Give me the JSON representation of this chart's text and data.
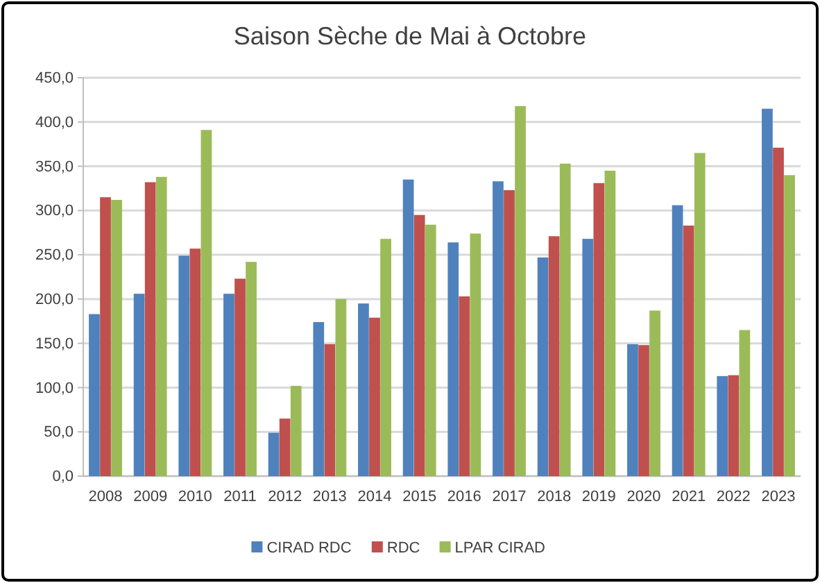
{
  "chart_data": {
    "type": "bar",
    "title": "Saison Sèche de Mai à Octobre",
    "categories": [
      "2008",
      "2009",
      "2010",
      "2011",
      "2012",
      "2013",
      "2014",
      "2015",
      "2016",
      "2017",
      "2018",
      "2019",
      "2020",
      "2021",
      "2022",
      "2023"
    ],
    "series": [
      {
        "name": "CIRAD RDC",
        "color": "#4f81bd",
        "values": [
          183,
          206,
          249,
          206,
          49,
          174,
          195,
          335,
          264,
          333,
          247,
          268,
          149,
          306,
          113,
          415
        ]
      },
      {
        "name": "RDC",
        "color": "#c0504d",
        "values": [
          315,
          332,
          257,
          223,
          65,
          149,
          179,
          295,
          203,
          323,
          271,
          331,
          148,
          283,
          114,
          371
        ]
      },
      {
        "name": "LPAR CIRAD",
        "color": "#9bbb59",
        "values": [
          312,
          338,
          391,
          242,
          102,
          200,
          268,
          284,
          274,
          418,
          353,
          345,
          187,
          365,
          165,
          340
        ]
      }
    ],
    "ylim": [
      0,
      450
    ],
    "yticks": [
      {
        "value": 0,
        "label": "0,0"
      },
      {
        "value": 50,
        "label": "50,0"
      },
      {
        "value": 100,
        "label": "100,0"
      },
      {
        "value": 150,
        "label": "150,0"
      },
      {
        "value": 200,
        "label": "200,0"
      },
      {
        "value": 250,
        "label": "250,0"
      },
      {
        "value": 300,
        "label": "300,0"
      },
      {
        "value": 350,
        "label": "350,0"
      },
      {
        "value": 400,
        "label": "400,0"
      },
      {
        "value": 450,
        "label": "450,0"
      }
    ],
    "grid": "y",
    "legend": "bottom"
  }
}
